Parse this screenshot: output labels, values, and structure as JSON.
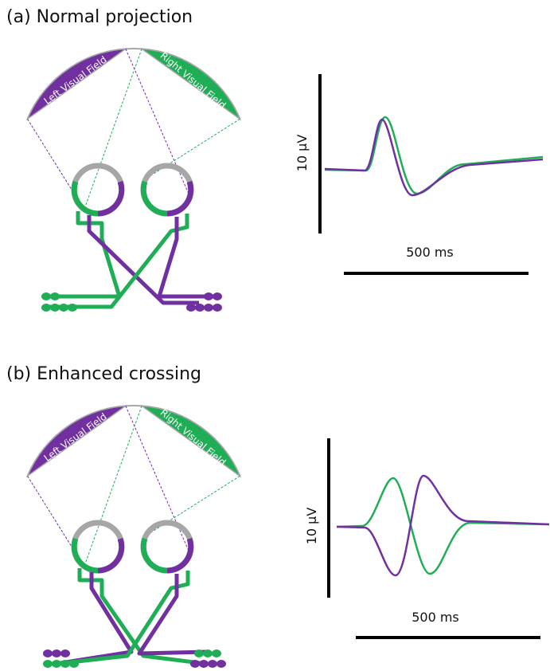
{
  "panels": [
    {
      "title": "(a) Normal projection",
      "left_field": "Left Visual Field",
      "right_field": "Right Visual Field",
      "y_scale": "10 µV",
      "x_scale": "500 ms"
    },
    {
      "title": "(b) Enhanced crossing",
      "left_field": "Left Visual Field",
      "right_field": "Right Visual Field",
      "y_scale": "10 µV",
      "x_scale": "500 ms"
    }
  ]
}
